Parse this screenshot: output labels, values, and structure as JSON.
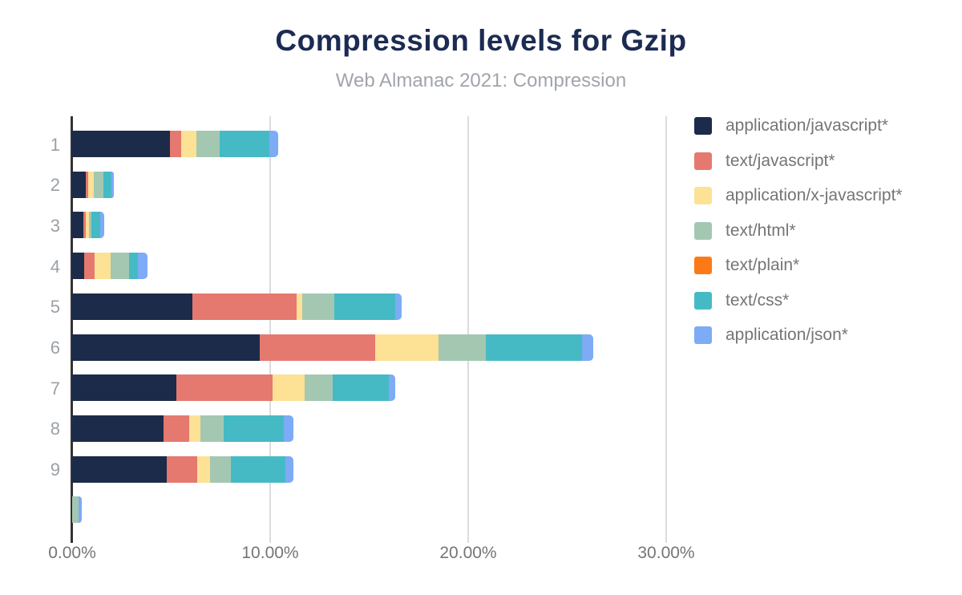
{
  "header": {
    "title": "Compression levels for Gzip",
    "subtitle": "Web Almanac 2021: Compression"
  },
  "chart_data": {
    "type": "bar",
    "orientation": "horizontal",
    "stacked": true,
    "title": "Compression levels for Gzip",
    "subtitle": "Web Almanac 2021: Compression",
    "categories": [
      "1",
      "2",
      "3",
      "4",
      "5",
      "6",
      "7",
      "8",
      "9",
      ""
    ],
    "series": [
      {
        "name": "application/javascript*",
        "color": "#1c2b49",
        "values": [
          4.93,
          0.67,
          0.57,
          0.61,
          6.07,
          9.47,
          5.26,
          4.62,
          4.79,
          0
        ]
      },
      {
        "name": "text/javascript*",
        "color": "#e5796f",
        "values": [
          0.58,
          0.16,
          0.12,
          0.54,
          5.26,
          5.83,
          4.86,
          1.3,
          1.53,
          0
        ]
      },
      {
        "name": "application/x-javascript*",
        "color": "#fde195",
        "values": [
          0.77,
          0.28,
          0.16,
          0.81,
          0.27,
          3.19,
          1.62,
          0.57,
          0.63,
          0
        ]
      },
      {
        "name": "text/html*",
        "color": "#a4c7b2",
        "values": [
          1.17,
          0.45,
          0.12,
          0.92,
          1.62,
          2.4,
          1.42,
          1.17,
          1.05,
          0.32
        ]
      },
      {
        "name": "text/plain*",
        "color": "#fb7a17",
        "values": [
          0,
          0,
          0,
          0,
          0,
          0,
          0,
          0,
          0,
          0
        ]
      },
      {
        "name": "text/css*",
        "color": "#45bac5",
        "values": [
          2.51,
          0.42,
          0.45,
          0.43,
          3.1,
          4.86,
          2.83,
          3.04,
          2.77,
          0
        ]
      },
      {
        "name": "application/json*",
        "color": "#7dabf5",
        "values": [
          0.43,
          0.11,
          0.2,
          0.51,
          0.34,
          0.57,
          0.34,
          0.49,
          0.4,
          0.16
        ]
      }
    ],
    "x_ticks": [
      {
        "label": "0.00%",
        "value": 0
      },
      {
        "label": "10.00%",
        "value": 10
      },
      {
        "label": "20.00%",
        "value": 20
      },
      {
        "label": "30.00%",
        "value": 30
      }
    ],
    "xlim": [
      0,
      31.2
    ],
    "grid": true,
    "legend_position": "right"
  },
  "style": {
    "title_color": "#1c2b52",
    "subtitle_color": "#a1a5ab",
    "tick_label_color": "#757575",
    "category_label_color": "#9aa0a6",
    "gridline_color": "#dadce0",
    "axis_color": "#333333",
    "background": "#ffffff"
  }
}
